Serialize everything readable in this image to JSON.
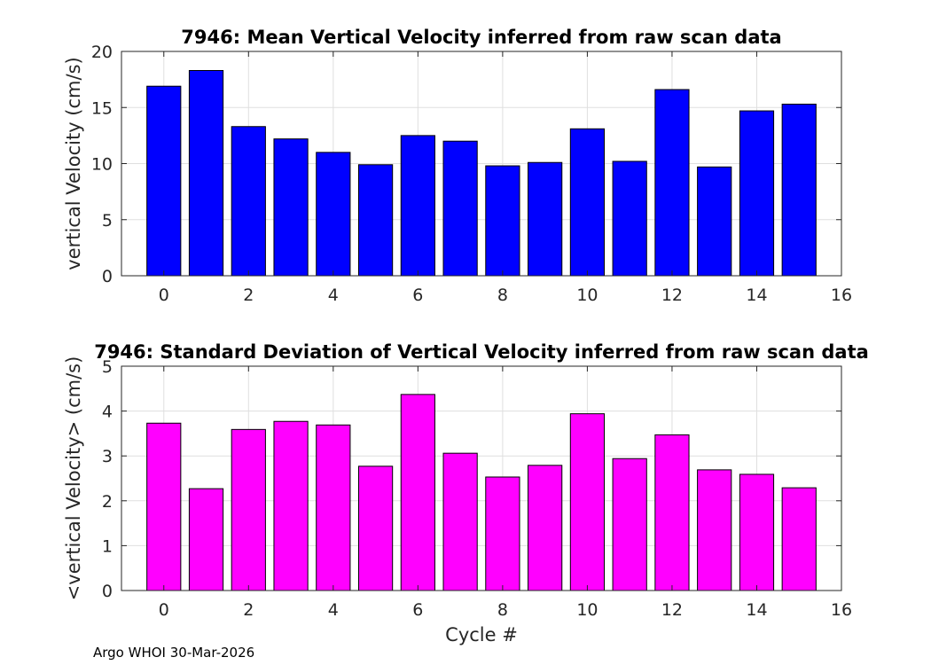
{
  "chart_data": [
    {
      "type": "bar",
      "title": "7946: Mean Vertical Velocity inferred from raw scan data",
      "xlabel": "",
      "ylabel": "vertical Velocity (cm/s)",
      "x": [
        0,
        1,
        2,
        3,
        4,
        5,
        6,
        7,
        8,
        9,
        10,
        11,
        12,
        13,
        14,
        15
      ],
      "values": [
        16.9,
        18.3,
        13.3,
        12.2,
        11.0,
        9.9,
        12.5,
        12.0,
        9.8,
        10.1,
        13.1,
        10.2,
        16.6,
        9.7,
        14.7,
        15.3
      ],
      "xlim": [
        -1,
        16
      ],
      "ylim": [
        0,
        20
      ],
      "xticks": [
        0,
        2,
        4,
        6,
        8,
        10,
        12,
        14,
        16
      ],
      "yticks": [
        0,
        5,
        10,
        15,
        20
      ],
      "bar_color": "#0000ff",
      "grid": true
    },
    {
      "type": "bar",
      "title": "7946: Standard Deviation of Vertical Velocity inferred from raw scan data",
      "xlabel": "Cycle #",
      "ylabel": "<vertical Velocity> (cm/s)",
      "x": [
        0,
        1,
        2,
        3,
        4,
        5,
        6,
        7,
        8,
        9,
        10,
        11,
        12,
        13,
        14,
        15
      ],
      "values": [
        3.73,
        2.27,
        3.59,
        3.77,
        3.69,
        2.77,
        4.37,
        3.06,
        2.53,
        2.79,
        3.94,
        2.94,
        3.47,
        2.69,
        2.59,
        2.29
      ],
      "xlim": [
        -1,
        16
      ],
      "ylim": [
        0,
        5
      ],
      "xticks": [
        0,
        2,
        4,
        6,
        8,
        10,
        12,
        14,
        16
      ],
      "yticks": [
        0,
        1,
        2,
        3,
        4,
        5
      ],
      "bar_color": "#ff00ff",
      "grid": true
    }
  ],
  "footer": {
    "text": "Argo WHOI 30-Mar-2026"
  }
}
